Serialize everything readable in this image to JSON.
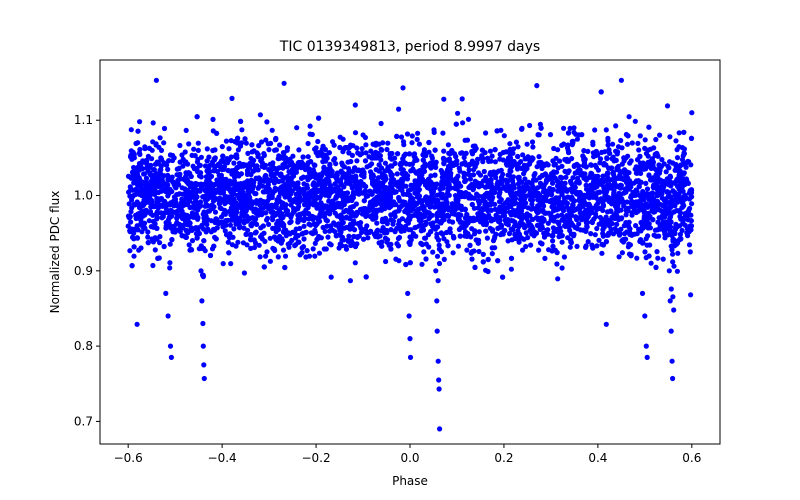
{
  "chart_data": {
    "type": "scatter",
    "title": "TIC 0139349813, period 8.9997 days",
    "xlabel": "Phase",
    "ylabel": "Normalized PDC flux",
    "xlim": [
      -0.66,
      0.66
    ],
    "ylim": [
      0.67,
      1.18
    ],
    "xticks": [
      -0.6,
      -0.4,
      -0.2,
      0.0,
      0.2,
      0.4,
      0.6
    ],
    "xtick_labels": [
      "−0.6",
      "−0.4",
      "−0.2",
      "0.0",
      "0.2",
      "0.4",
      "0.6"
    ],
    "yticks": [
      0.7,
      0.8,
      0.9,
      1.0,
      1.1
    ],
    "ytick_labels": [
      "0.7",
      "0.8",
      "0.9",
      "1.0",
      "1.1"
    ],
    "grid": false,
    "marker_color": "#0000ff",
    "series": [
      {
        "baseline": {
          "x_range": [
            -0.6,
            0.6
          ],
          "y_center": 1.0,
          "y_spread": 0.04,
          "n_points": 5000
        },
        "points": [
          [
            -0.581,
            0.829
          ],
          [
            -0.52,
            0.87
          ],
          [
            -0.515,
            0.84
          ],
          [
            -0.51,
            0.8
          ],
          [
            -0.508,
            0.785
          ],
          [
            -0.445,
            0.9
          ],
          [
            -0.443,
            0.86
          ],
          [
            -0.441,
            0.83
          ],
          [
            -0.44,
            0.8
          ],
          [
            -0.439,
            0.775
          ],
          [
            -0.438,
            0.757
          ],
          [
            -0.005,
            0.87
          ],
          [
            -0.002,
            0.84
          ],
          [
            0.0,
            0.81
          ],
          [
            0.001,
            0.785
          ],
          [
            0.055,
            0.9
          ],
          [
            0.057,
            0.86
          ],
          [
            0.058,
            0.82
          ],
          [
            0.06,
            0.78
          ],
          [
            0.061,
            0.755
          ],
          [
            0.062,
            0.743
          ],
          [
            0.063,
            0.69
          ],
          [
            0.418,
            0.829
          ],
          [
            0.495,
            0.87
          ],
          [
            0.5,
            0.84
          ],
          [
            0.503,
            0.8
          ],
          [
            0.505,
            0.785
          ],
          [
            0.552,
            0.9
          ],
          [
            0.554,
            0.86
          ],
          [
            0.556,
            0.82
          ],
          [
            0.558,
            0.78
          ],
          [
            0.559,
            0.757
          ],
          [
            -0.54,
            1.153
          ],
          [
            -0.268,
            1.149
          ],
          [
            -0.015,
            1.143
          ],
          [
            0.072,
            1.128
          ],
          [
            0.27,
            1.146
          ],
          [
            0.45,
            1.153
          ],
          [
            0.6,
            1.11
          ]
        ]
      }
    ]
  }
}
